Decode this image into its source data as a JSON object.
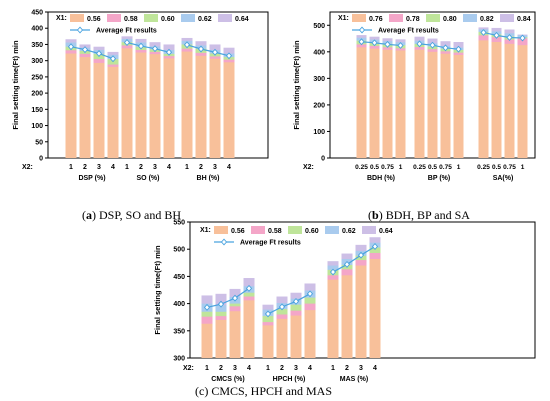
{
  "captions": {
    "a_letter": "a",
    "a_text": " DSP, SO and BH",
    "b_letter": "b",
    "b_text": " BDH, BP and SA",
    "c_text": "(c) CMCS, HPCH and MAS"
  },
  "colors": {
    "s1": "#f8c09a",
    "s2": "#f4a6c8",
    "s3": "#bfe59a",
    "s4": "#a9cbee",
    "s5": "#cdbfe6",
    "avg_line": "#4aa3df"
  },
  "chart_data": [
    {
      "id": "a",
      "type": "bar",
      "stacked": true,
      "ylabel": "Final setting time(Ft) min",
      "ylim": [
        0,
        450
      ],
      "yticks": [
        0,
        50,
        100,
        150,
        200,
        250,
        300,
        350,
        400,
        450
      ],
      "legend_title": "X1:",
      "legend": [
        "0.56",
        "0.58",
        "0.60",
        "0.62",
        "0.64"
      ],
      "avg_label": "Average Ft results",
      "x_prefix": "X2:",
      "groups": [
        {
          "label": "DSP (%)",
          "ticks": [
            "1",
            "2",
            "3",
            "4"
          ],
          "series": [
            [
              322,
              311,
              293,
              281
            ],
            [
              332,
              321,
              305,
              288
            ],
            [
              343,
              330,
              321,
              305
            ],
            [
              356,
              340,
              333,
              318
            ],
            [
              366,
              350,
              343,
              327
            ]
          ],
          "avg": [
            343,
            334,
            322,
            306
          ]
        },
        {
          "label": "SO (%)",
          "ticks": [
            "1",
            "2",
            "3",
            "4"
          ],
          "series": [
            [
              338,
              325,
              320,
              307
            ],
            [
              347,
              333,
              327,
              314
            ],
            [
              357,
              343,
              335,
              321
            ],
            [
              367,
              356,
              344,
              333
            ],
            [
              375,
              367,
              357,
              350
            ]
          ],
          "avg": [
            356,
            345,
            337,
            326
          ]
        },
        {
          "label": "BH (%)",
          "ticks": [
            "1",
            "2",
            "3",
            "4"
          ],
          "series": [
            [
              328,
              315,
              306,
              295
            ],
            [
              337,
              324,
              313,
              303
            ],
            [
              350,
              337,
              322,
              311
            ],
            [
              361,
              347,
              333,
              322
            ],
            [
              370,
              360,
              350,
              340
            ]
          ],
          "avg": [
            349,
            336,
            326,
            315
          ]
        }
      ]
    },
    {
      "id": "b",
      "type": "bar",
      "stacked": true,
      "ylabel": "Final setting time(Ft) min",
      "ylim": [
        0,
        550
      ],
      "yticks": [
        0,
        100,
        200,
        300,
        400,
        500
      ],
      "legend_title": "X1:",
      "legend": [
        "0.76",
        "0.78",
        "0.80",
        "0.82",
        "0.84"
      ],
      "avg_label": "Average Ft results",
      "x_prefix": "X2:",
      "groups": [
        {
          "label": "BDH (%)",
          "ticks": [
            "0.25",
            "0.5",
            "0.75",
            "1"
          ],
          "series": [
            [
              417,
              412,
              408,
              405
            ],
            [
              428,
              422,
              417,
              413
            ],
            [
              442,
              435,
              430,
              425
            ],
            [
              453,
              446,
              440,
              436
            ],
            [
              463,
              457,
              451,
              447
            ]
          ],
          "avg": [
            438,
            434,
            428,
            424
          ]
        },
        {
          "label": "BP (%)",
          "ticks": [
            "0.25",
            "0.5",
            "0.75",
            "1"
          ],
          "series": [
            [
              408,
              400,
              393,
              388
            ],
            [
              418,
              410,
              402,
              397
            ],
            [
              430,
              420,
              412,
              407
            ],
            [
              442,
              432,
              422,
              416
            ],
            [
              457,
              450,
              440,
              437
            ]
          ],
          "avg": [
            430,
            425,
            415,
            410
          ]
        },
        {
          "label": "SA(%)",
          "ticks": [
            "0.25",
            "0.5",
            "0.75",
            "1"
          ],
          "series": [
            [
              443,
              437,
              430,
              425
            ],
            [
              462,
              455,
              446,
              451
            ],
            [
              475,
              466,
              458,
              455
            ],
            [
              485,
              477,
              470,
              462
            ],
            [
              492,
              490,
              484,
              465
            ]
          ],
          "avg": [
            473,
            462,
            454,
            452
          ]
        }
      ]
    },
    {
      "id": "c",
      "type": "bar",
      "stacked": true,
      "ylabel": "Final setting time(Ft) min",
      "ylim": [
        300,
        550
      ],
      "yticks": [
        300,
        350,
        400,
        450,
        500,
        550
      ],
      "legend_title": "X1:",
      "legend": [
        "0.56",
        "0.58",
        "0.60",
        "0.62",
        "0.64"
      ],
      "avg_label": "Average Ft results",
      "x_prefix": "X2:",
      "groups": [
        {
          "label": "CMCS (%)",
          "ticks": [
            "1",
            "2",
            "3",
            "4"
          ],
          "series": [
            [
              363,
              370,
              386,
              406
            ],
            [
              376,
              377,
              395,
              413
            ],
            [
              385,
              385,
              400,
              420
            ],
            [
              400,
              397,
              412,
              432
            ],
            [
              415,
              418,
              427,
              447
            ]
          ],
          "avg": [
            393,
            399,
            410,
            428
          ]
        },
        {
          "label": "HPCH (%)",
          "ticks": [
            "1",
            "2",
            "3",
            "4"
          ],
          "series": [
            [
              360,
              372,
              378,
              388
            ],
            [
              366,
              380,
              387,
              400
            ],
            [
              377,
              390,
              398,
              411
            ],
            [
              389,
              401,
              409,
              424
            ],
            [
              398,
              413,
              420,
              437
            ]
          ],
          "avg": [
            381,
            394,
            404,
            418
          ]
        },
        {
          "label": "MAS (%)",
          "ticks": [
            "1",
            "2",
            "3",
            "4"
          ],
          "series": [
            [
              444,
              452,
              470,
              482
            ],
            [
              452,
              463,
              480,
              493
            ],
            [
              462,
              471,
              488,
              503
            ],
            [
              470,
              482,
              497,
              512
            ],
            [
              478,
              492,
              508,
              522
            ]
          ],
          "avg": [
            458,
            472,
            489,
            505
          ]
        }
      ]
    }
  ]
}
